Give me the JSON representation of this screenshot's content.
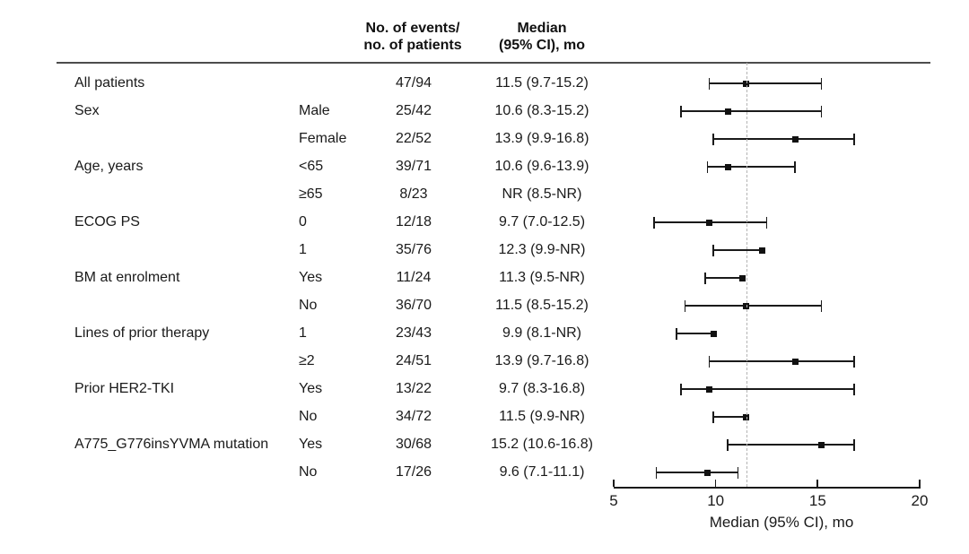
{
  "chart_data": {
    "type": "forest",
    "xlabel": "Median (95% CI), mo",
    "xticks": [
      5,
      10,
      15,
      20
    ],
    "xlim": [
      5,
      20
    ],
    "reference_line": 11.5,
    "column_headers": {
      "events": [
        "No. of events/",
        "no. of patients"
      ],
      "median": [
        "Median",
        "(95% CI), mo"
      ]
    },
    "rows": [
      {
        "group": "All patients",
        "subgroup": "",
        "events": "47/94",
        "median_text": "11.5 (9.7-15.2)",
        "median": 11.5,
        "lower": 9.7,
        "upper": 15.2
      },
      {
        "group": "Sex",
        "subgroup": "Male",
        "events": "25/42",
        "median_text": "10.6 (8.3-15.2)",
        "median": 10.6,
        "lower": 8.3,
        "upper": 15.2
      },
      {
        "group": "",
        "subgroup": "Female",
        "events": "22/52",
        "median_text": "13.9 (9.9-16.8)",
        "median": 13.9,
        "lower": 9.9,
        "upper": 16.8
      },
      {
        "group": "Age, years",
        "subgroup": "<65",
        "events": "39/71",
        "median_text": "10.6 (9.6-13.9)",
        "median": 10.6,
        "lower": 9.6,
        "upper": 13.9
      },
      {
        "group": "",
        "subgroup": "≥65",
        "events": "8/23",
        "median_text": "NR (8.5-NR)",
        "median": null,
        "lower": 8.5,
        "upper": null
      },
      {
        "group": "ECOG PS",
        "subgroup": "0",
        "events": "12/18",
        "median_text": "9.7 (7.0-12.5)",
        "median": 9.7,
        "lower": 7.0,
        "upper": 12.5
      },
      {
        "group": "",
        "subgroup": "1",
        "events": "35/76",
        "median_text": "12.3 (9.9-NR)",
        "median": 12.3,
        "lower": 9.9,
        "upper": null
      },
      {
        "group": "BM at enrolment",
        "subgroup": "Yes",
        "events": "11/24",
        "median_text": "11.3 (9.5-NR)",
        "median": 11.3,
        "lower": 9.5,
        "upper": null
      },
      {
        "group": "",
        "subgroup": "No",
        "events": "36/70",
        "median_text": "11.5 (8.5-15.2)",
        "median": 11.5,
        "lower": 8.5,
        "upper": 15.2
      },
      {
        "group": "Lines of prior therapy",
        "subgroup": "1",
        "events": "23/43",
        "median_text": "9.9 (8.1-NR)",
        "median": 9.9,
        "lower": 8.1,
        "upper": null
      },
      {
        "group": "",
        "subgroup": "≥2",
        "events": "24/51",
        "median_text": "13.9 (9.7-16.8)",
        "median": 13.9,
        "lower": 9.7,
        "upper": 16.8
      },
      {
        "group": "Prior HER2-TKI",
        "subgroup": "Yes",
        "events": "13/22",
        "median_text": "9.7 (8.3-16.8)",
        "median": 9.7,
        "lower": 8.3,
        "upper": 16.8
      },
      {
        "group": "",
        "subgroup": "No",
        "events": "34/72",
        "median_text": "11.5 (9.9-NR)",
        "median": 11.5,
        "lower": 9.9,
        "upper": null
      },
      {
        "group": "A775_G776insYVMA mutation",
        "subgroup": "Yes",
        "events": "30/68",
        "median_text": "15.2 (10.6-16.8)",
        "median": 15.2,
        "lower": 10.6,
        "upper": 16.8
      },
      {
        "group": "",
        "subgroup": "No",
        "events": "17/26",
        "median_text": "9.6 (7.1-11.1)",
        "median": 9.6,
        "lower": 7.1,
        "upper": 11.1
      }
    ]
  },
  "colors": {
    "marker": "#111111",
    "ci_line": "#1a1a1a",
    "reference_line": "#b4b4b4",
    "header_rule": "#4d4d4d",
    "text": "#1a1a1a"
  }
}
